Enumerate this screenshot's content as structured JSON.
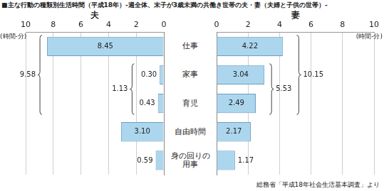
{
  "chart_data": {
    "type": "bar",
    "orientation": "horizontal",
    "title": "■主な行動の種類別生活時間（平成18年）‐週全体、末子が3歳未満の共働き世帯の夫・妻（夫婦と子供の世帯）‐",
    "source": "総務省「平成18年社会生活基本調査」より",
    "xlabel": "(時間-分)",
    "categories": [
      "仕事",
      "家事",
      "育児",
      "自由時間",
      "身の回りの用事"
    ],
    "series": [
      {
        "name": "夫",
        "color": "#acd6ee",
        "values": [
          8.45,
          0.3,
          0.43,
          3.1,
          0.59
        ],
        "value_labels": [
          "8.45",
          "0.30",
          "0.43",
          "3.10",
          "0.59"
        ]
      },
      {
        "name": "妻",
        "color": "#acd6ee",
        "values": [
          4.22,
          3.04,
          2.49,
          2.17,
          1.17
        ],
        "value_labels": [
          "4.22",
          "3.04",
          "2.49",
          "2.17",
          "1.17"
        ]
      }
    ],
    "totals": [
      {
        "series": "夫",
        "value": 1.13,
        "from": "家事",
        "to": "育児"
      },
      {
        "series": "夫",
        "value": 9.58,
        "from": "仕事",
        "to": "育児"
      },
      {
        "series": "妻",
        "value": 5.53,
        "from": "家事",
        "to": "育児"
      },
      {
        "series": "妻",
        "value": 10.15,
        "from": "仕事",
        "to": "育児"
      }
    ],
    "xlim": [
      0,
      10
    ],
    "xticks": [
      0,
      2,
      4,
      6,
      8,
      10
    ],
    "grid": true,
    "data_labels": true,
    "tick_labels": "x"
  }
}
